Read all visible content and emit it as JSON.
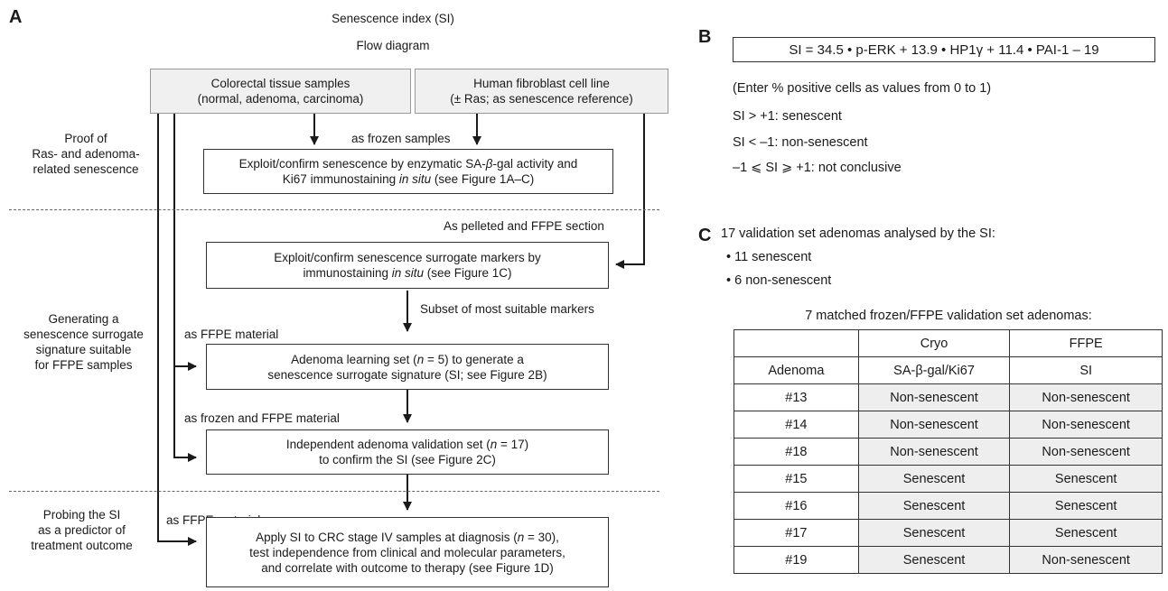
{
  "panel_a": {
    "letter": "A",
    "title": "Senescence index (SI)",
    "subtitle": "Flow diagram",
    "source_left": [
      "Colorectal tissue samples",
      "(normal, adenoma, carcinoma)"
    ],
    "source_right": [
      "Human fibroblast cell line",
      "(± Ras; as senescence reference)"
    ],
    "label_frozen": "as frozen samples",
    "box1": [
      "Exploit/confirm senescence by enzymatic SA-",
      "β",
      "-gal activity and",
      "Ki67 immunostaining ",
      "in situ",
      " (see Figure 1A–C)"
    ],
    "section1": [
      "Proof of",
      "Ras- and adenoma-",
      "related senescence"
    ],
    "label_pelleted": "As pelleted and FFPE section",
    "box2": [
      "Exploit/confirm senescence surrogate markers by",
      "immunostaining ",
      "in situ",
      " (see Figure 1C)"
    ],
    "label_subset": "Subset of most suitable markers",
    "section2": [
      "Generating a",
      "senescence surrogate",
      "signature suitable",
      "for FFPE samples"
    ],
    "label_ffpe1": "as FFPE material",
    "box3": [
      "Adenoma learning set (",
      "n",
      " = 5) to generate a",
      "senescence surrogate signature (SI; see Figure 2B)"
    ],
    "label_frozen_ffpe": "as frozen and FFPE material",
    "box4": [
      "Independent adenoma validation set (",
      "n",
      " = 17)",
      "to confirm the SI (see Figure 2C)"
    ],
    "section3": [
      "Probing the SI",
      "as a predictor of",
      "treatment outcome"
    ],
    "label_ffpe2": "as FFPE material",
    "box5": [
      "Apply SI to CRC stage IV samples at diagnosis (",
      "n",
      " = 30),",
      "test independence from clinical and molecular parameters,",
      "and correlate with outcome to therapy (see Figure 1D)"
    ]
  },
  "panel_b": {
    "letter": "B",
    "formula": "SI = 34.5 • p-ERK + 13.9 • HP1γ + 11.4 • PAI-1 – 19",
    "note": "(Enter % positive cells as values from 0 to 1)",
    "rule1": "SI > +1: senescent",
    "rule2": "SI < –1: non-senescent",
    "rule3": "–1 ⩽ SI ⩾ +1: not conclusive"
  },
  "panel_c": {
    "letter": "C",
    "heading": "17 validation set adenomas analysed by the SI:",
    "bullets": [
      "• 11 senescent",
      "• 6 non-senescent"
    ],
    "table_title": "7 matched frozen/FFPE validation set adenomas:",
    "header1": [
      "",
      "Cryo",
      "FFPE"
    ],
    "header2": [
      "Adenoma",
      "SA-β-gal/Ki67",
      "SI"
    ],
    "rows": [
      [
        "#13",
        "Non-senescent",
        "Non-senescent"
      ],
      [
        "#14",
        "Non-senescent",
        "Non-senescent"
      ],
      [
        "#18",
        "Non-senescent",
        "Non-senescent"
      ],
      [
        "#15",
        "Senescent",
        "Senescent"
      ],
      [
        "#16",
        "Senescent",
        "Senescent"
      ],
      [
        "#17",
        "Senescent",
        "Senescent"
      ],
      [
        "#19",
        "Senescent",
        "Non-senescent"
      ]
    ]
  }
}
